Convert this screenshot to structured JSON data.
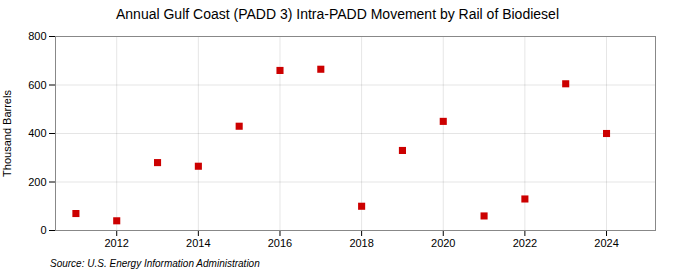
{
  "chart_data": {
    "type": "scatter",
    "title": "Annual Gulf Coast (PADD 3) Intra-PADD Movement by Rail of Biodiesel",
    "ylabel": "Thousand Barrels",
    "annotation": "Source: U.S. Energy Information Administration",
    "x": [
      2011,
      2012,
      2013,
      2014,
      2015,
      2016,
      2017,
      2018,
      2019,
      2020,
      2021,
      2022,
      2023,
      2024
    ],
    "values": [
      70,
      40,
      280,
      265,
      430,
      660,
      665,
      100,
      330,
      450,
      60,
      130,
      605,
      400
    ],
    "color": "#cc0000",
    "marker": "square",
    "xlim": [
      2010.5,
      2025.2
    ],
    "xticks": [
      2012,
      2014,
      2016,
      2018,
      2020,
      2022,
      2024
    ],
    "ylim": [
      0,
      800
    ],
    "yticks": [
      0,
      200,
      400,
      600,
      800
    ],
    "grid": true
  }
}
